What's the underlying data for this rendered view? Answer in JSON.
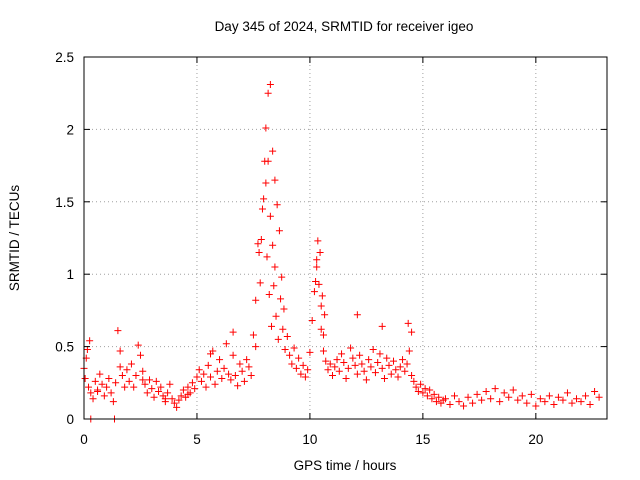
{
  "chart_data": {
    "type": "scatter",
    "title": "Day 345 of 2024, SRMTID for receiver igeo",
    "xlabel": "GPS time / hours",
    "ylabel": "SRMTID / TECUs",
    "xlim": [
      0,
      23.15
    ],
    "ylim": [
      0,
      2.5
    ],
    "xticks": [
      0,
      5,
      10,
      15,
      20
    ],
    "xtick_labels": [
      "0",
      "5",
      "10",
      "15",
      "20"
    ],
    "yticks": [
      0,
      0.5,
      1,
      1.5,
      2,
      2.5
    ],
    "ytick_labels": [
      "0",
      "0.5",
      "1",
      "1.5",
      "2",
      "2.5"
    ],
    "grid": true,
    "marker": "plus",
    "color": "#ff0000",
    "series": [
      {
        "name": "SRMTID",
        "x": [
          0.0,
          0.1,
          0.2,
          0.3,
          0.4,
          0.5,
          0.6,
          0.7,
          0.8,
          0.9,
          1.0,
          1.1,
          1.2,
          1.3,
          1.4,
          1.5,
          1.6,
          1.7,
          1.8,
          1.9,
          2.0,
          2.1,
          2.2,
          2.3,
          2.4,
          2.5,
          2.6,
          2.7,
          2.8,
          2.9,
          3.0,
          3.1,
          3.2,
          3.3,
          3.4,
          3.5,
          3.6,
          3.7,
          3.8,
          3.9,
          4.0,
          4.1,
          4.2,
          4.3,
          4.4,
          4.5,
          4.6,
          4.7,
          4.8,
          4.9,
          5.0,
          5.1,
          5.2,
          5.3,
          5.4,
          5.5,
          5.6,
          5.7,
          5.8,
          5.9,
          6.0,
          6.1,
          6.2,
          6.3,
          6.4,
          6.5,
          6.6,
          6.7,
          6.8,
          6.9,
          7.0,
          7.1,
          7.2,
          7.3,
          7.4,
          7.5,
          7.6,
          7.7,
          7.8,
          7.9,
          8.0,
          8.1,
          8.2,
          8.3,
          8.4,
          8.5,
          8.6,
          8.7,
          8.8,
          8.9,
          9.0,
          9.1,
          9.2,
          9.3,
          9.4,
          9.5,
          9.6,
          9.7,
          9.8,
          9.9,
          10.0,
          10.1,
          10.2,
          10.3,
          10.4,
          10.5,
          10.6,
          10.7,
          10.8,
          10.9,
          11.0,
          11.1,
          11.2,
          11.3,
          11.4,
          11.5,
          11.6,
          11.7,
          11.8,
          11.9,
          12.0,
          12.1,
          12.2,
          12.3,
          12.4,
          12.5,
          12.6,
          12.7,
          12.8,
          12.9,
          13.0,
          13.1,
          13.2,
          13.3,
          13.4,
          13.5,
          13.6,
          13.7,
          13.8,
          13.9,
          14.0,
          14.1,
          14.2,
          14.3,
          14.4,
          14.5,
          14.6,
          14.7,
          14.8,
          14.9,
          15.0,
          15.1,
          15.2,
          15.3,
          15.4,
          15.5,
          15.6,
          15.7,
          15.8,
          15.9,
          16.0,
          16.2,
          16.4,
          16.6,
          16.8,
          17.0,
          17.2,
          17.4,
          17.6,
          17.8,
          18.0,
          18.2,
          18.4,
          18.6,
          18.8,
          19.0,
          19.2,
          19.4,
          19.6,
          19.8,
          20.0,
          20.2,
          20.4,
          20.6,
          20.8,
          21.0,
          21.2,
          21.4,
          21.6,
          21.8,
          22.0,
          22.2,
          22.4,
          22.6,
          22.8,
          0.05,
          0.15,
          0.25,
          0.6,
          1.6,
          2.6,
          3.6,
          4.6,
          5.6,
          6.6,
          7.6,
          8.05,
          8.15,
          8.25,
          8.35,
          8.45,
          8.55,
          8.65,
          8.75,
          8.85,
          7.75,
          7.85,
          7.95,
          8.05,
          8.15,
          8.25,
          8.35,
          8.45,
          10.35,
          10.45,
          10.55,
          10.65,
          10.25,
          10.3,
          10.5,
          10.6,
          12.1,
          13.2,
          14.35,
          14.5,
          0.3,
          1.35
        ],
        "y": [
          0.35,
          0.42,
          0.22,
          0.18,
          0.14,
          0.26,
          0.2,
          0.31,
          0.24,
          0.16,
          0.22,
          0.28,
          0.18,
          0.12,
          0.25,
          0.61,
          0.47,
          0.3,
          0.22,
          0.34,
          0.26,
          0.38,
          0.22,
          0.3,
          0.51,
          0.44,
          0.33,
          0.24,
          0.18,
          0.27,
          0.21,
          0.15,
          0.26,
          0.19,
          0.22,
          0.16,
          0.12,
          0.18,
          0.24,
          0.14,
          0.11,
          0.08,
          0.13,
          0.16,
          0.2,
          0.15,
          0.22,
          0.18,
          0.25,
          0.21,
          0.29,
          0.34,
          0.26,
          0.31,
          0.22,
          0.37,
          0.29,
          0.47,
          0.24,
          0.33,
          0.41,
          0.28,
          0.35,
          0.52,
          0.31,
          0.27,
          0.44,
          0.3,
          0.23,
          0.38,
          0.33,
          0.26,
          0.41,
          0.36,
          0.3,
          0.58,
          0.82,
          1.21,
          0.94,
          1.45,
          1.78,
          1.12,
          0.86,
          0.64,
          0.92,
          0.71,
          0.55,
          0.83,
          0.62,
          0.48,
          0.57,
          0.44,
          0.38,
          0.49,
          0.35,
          0.42,
          0.31,
          0.37,
          0.29,
          0.34,
          0.46,
          0.68,
          0.88,
          1.05,
          0.93,
          0.62,
          0.47,
          0.4,
          0.34,
          0.38,
          0.3,
          0.36,
          0.41,
          0.33,
          0.45,
          0.39,
          0.28,
          0.35,
          0.49,
          0.42,
          0.37,
          0.31,
          0.44,
          0.38,
          0.33,
          0.27,
          0.41,
          0.36,
          0.48,
          0.32,
          0.39,
          0.45,
          0.35,
          0.28,
          0.42,
          0.37,
          0.31,
          0.4,
          0.34,
          0.29,
          0.36,
          0.41,
          0.33,
          0.38,
          0.47,
          0.3,
          0.26,
          0.22,
          0.19,
          0.24,
          0.18,
          0.21,
          0.16,
          0.2,
          0.14,
          0.17,
          0.12,
          0.15,
          0.11,
          0.13,
          0.14,
          0.1,
          0.16,
          0.12,
          0.09,
          0.15,
          0.11,
          0.17,
          0.13,
          0.19,
          0.14,
          0.21,
          0.12,
          0.18,
          0.15,
          0.2,
          0.13,
          0.16,
          0.11,
          0.17,
          0.09,
          0.14,
          0.12,
          0.16,
          0.1,
          0.15,
          0.13,
          0.18,
          0.11,
          0.14,
          0.12,
          0.16,
          0.1,
          0.19,
          0.15,
          0.28,
          0.48,
          0.54,
          0.19,
          0.36,
          0.27,
          0.14,
          0.17,
          0.45,
          0.6,
          0.5,
          2.01,
          2.25,
          2.31,
          1.85,
          1.65,
          1.48,
          1.3,
          0.98,
          0.76,
          1.15,
          1.24,
          1.52,
          1.63,
          1.78,
          1.4,
          1.2,
          1.05,
          1.23,
          1.15,
          0.85,
          0.72,
          0.95,
          1.1,
          0.78,
          0.58,
          0.72,
          0.64,
          0.66,
          0.6,
          0.0,
          0.0
        ]
      }
    ]
  }
}
